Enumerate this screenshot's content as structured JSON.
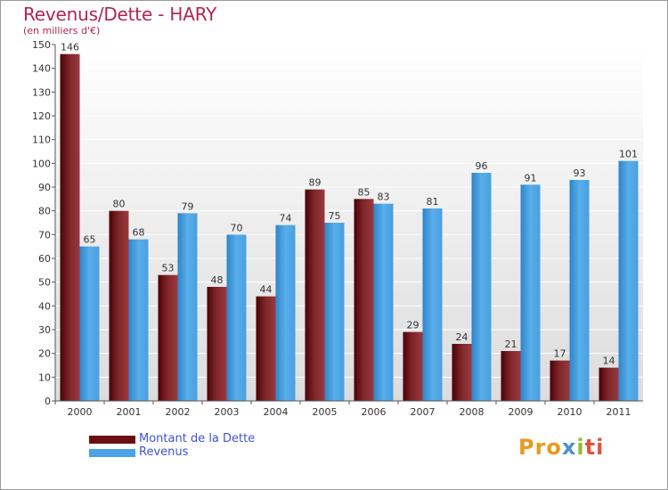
{
  "chart_data": {
    "type": "bar",
    "title": "Revenus/Dette - HARY",
    "subtitle": "(en milliers d'€)",
    "categories": [
      "2000",
      "2001",
      "2002",
      "2003",
      "2004",
      "2005",
      "2006",
      "2007",
      "2008",
      "2009",
      "2010",
      "2011"
    ],
    "series": [
      {
        "name": "Montant de la Dette",
        "color": "#7a1e22",
        "values": [
          146,
          80,
          53,
          48,
          44,
          89,
          85,
          29,
          24,
          21,
          17,
          14
        ]
      },
      {
        "name": "Revenus",
        "color": "#4aa3e6",
        "values": [
          65,
          68,
          79,
          70,
          74,
          75,
          83,
          81,
          96,
          91,
          93,
          101
        ]
      }
    ],
    "ylim": [
      0,
      150
    ],
    "yticks": [
      0,
      10,
      20,
      30,
      40,
      50,
      60,
      70,
      80,
      90,
      100,
      110,
      120,
      130,
      140,
      150
    ],
    "grid": true,
    "legend_position": "bottom-left"
  },
  "legend": {
    "items": [
      {
        "label": "Montant de la Dette",
        "color": "#6b0f14"
      },
      {
        "label": "Revenus",
        "color": "#4aa3e6"
      }
    ]
  },
  "logo": {
    "p1": "Pro",
    "p2": "x",
    "p3": "i",
    "p4": "ti"
  }
}
